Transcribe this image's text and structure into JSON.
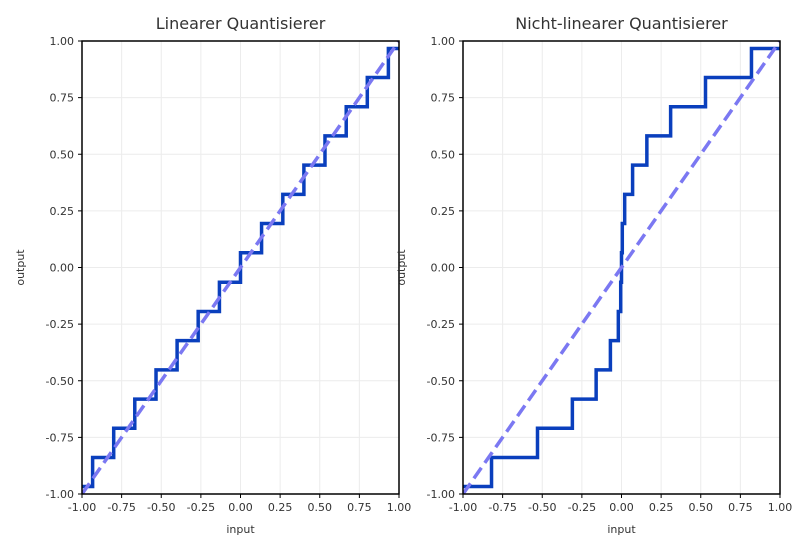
{
  "colors": {
    "step": "#0a3fbd",
    "identity": "#7b78f2",
    "grid": "#ececec",
    "frame": "#000000"
  },
  "chart_data": [
    {
      "type": "line",
      "title": "Linearer Quantisierer",
      "xlabel": "input",
      "ylabel": "output",
      "xlim": [
        -1.0,
        1.0
      ],
      "ylim": [
        -1.0,
        1.0
      ],
      "grid": true,
      "legend": "none",
      "xticks": [
        "-1.00",
        "-0.75",
        "-0.50",
        "-0.25",
        "0.00",
        "0.25",
        "0.50",
        "0.75",
        "1.00"
      ],
      "yticks": [
        "-1.00",
        "-0.75",
        "-0.50",
        "-0.25",
        "0.00",
        "0.25",
        "0.50",
        "0.75",
        "1.00"
      ],
      "series": [
        {
          "style": "step",
          "edges": [
            -1.0,
            -0.933,
            -0.8,
            -0.667,
            -0.533,
            -0.4,
            -0.267,
            -0.133,
            0.0,
            0.133,
            0.267,
            0.4,
            0.533,
            0.667,
            0.8,
            0.933,
            1.0
          ],
          "levels": [
            -0.967,
            -0.839,
            -0.71,
            -0.581,
            -0.452,
            -0.323,
            -0.194,
            -0.065,
            0.065,
            0.194,
            0.323,
            0.452,
            0.581,
            0.71,
            0.839,
            0.967
          ]
        },
        {
          "style": "dashed",
          "x": [
            -1.0,
            1.0
          ],
          "y": [
            -1.0,
            1.0
          ]
        }
      ]
    },
    {
      "type": "line",
      "title": "Nicht-linearer Quantisierer",
      "xlabel": "input",
      "ylabel": "output",
      "xlim": [
        -1.0,
        1.0
      ],
      "ylim": [
        -1.0,
        1.0
      ],
      "grid": true,
      "legend": "none",
      "xticks": [
        "-1.00",
        "-0.75",
        "-0.50",
        "-0.25",
        "0.00",
        "0.25",
        "0.50",
        "0.75",
        "1.00"
      ],
      "yticks": [
        "-1.00",
        "-0.75",
        "-0.50",
        "-0.25",
        "0.00",
        "0.25",
        "0.50",
        "0.75",
        "1.00"
      ],
      "series": [
        {
          "style": "step",
          "edges": [
            -1.0,
            -0.82,
            -0.53,
            -0.31,
            -0.16,
            -0.07,
            -0.02,
            -0.005,
            0.0,
            0.005,
            0.02,
            0.07,
            0.16,
            0.31,
            0.53,
            0.82,
            1.0
          ],
          "levels": [
            -0.967,
            -0.839,
            -0.71,
            -0.581,
            -0.452,
            -0.323,
            -0.194,
            -0.065,
            0.065,
            0.194,
            0.323,
            0.452,
            0.581,
            0.71,
            0.839,
            0.967
          ]
        },
        {
          "style": "dashed",
          "x": [
            -1.0,
            1.0
          ],
          "y": [
            -1.0,
            1.0
          ]
        }
      ]
    }
  ]
}
